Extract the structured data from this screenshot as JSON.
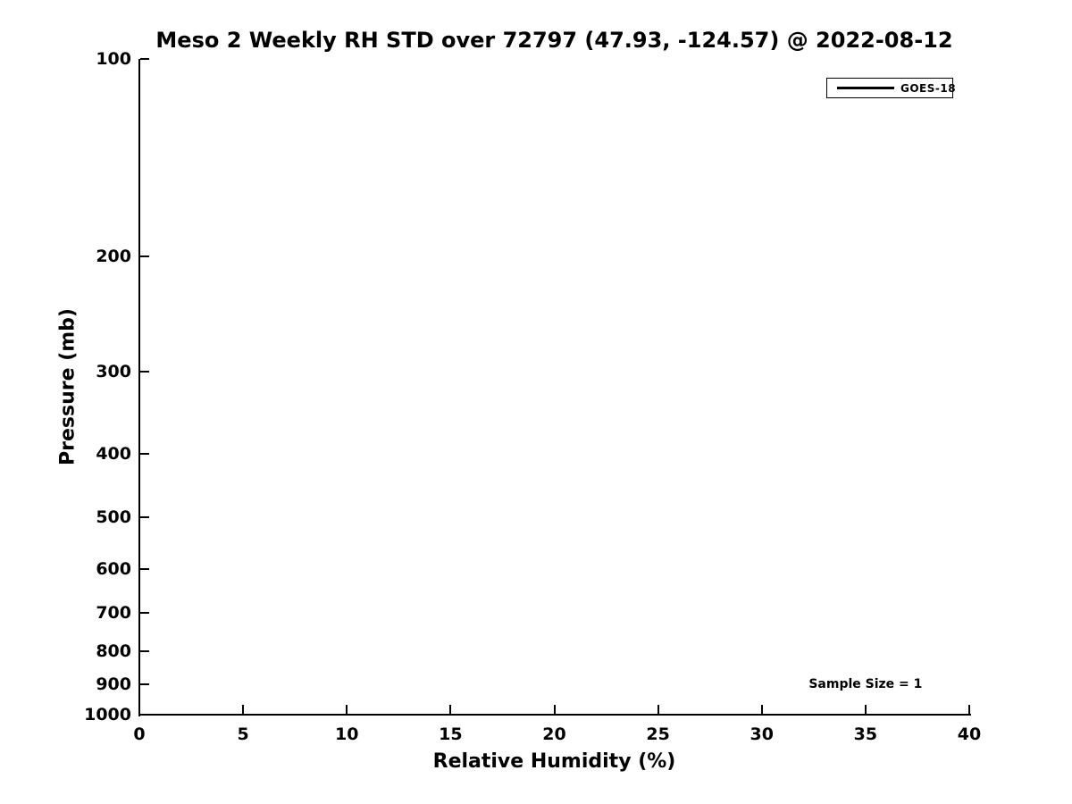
{
  "colors": {
    "foreground": "#000000",
    "background": "#ffffff",
    "series_goes18": "#000000"
  },
  "chart_data": {
    "type": "line",
    "title": "Meso 2 Weekly RH STD over 72797 (47.93, -124.57) @ 2022-08-12",
    "xlabel": "Relative Humidity (%)",
    "ylabel": "Pressure (mb)",
    "xlim": [
      0,
      40
    ],
    "ylim": [
      1000,
      100
    ],
    "yscale": "log",
    "y_axis_inverted": true,
    "grid": false,
    "xticks": [
      0,
      5,
      10,
      15,
      20,
      25,
      30,
      35,
      40
    ],
    "yticks": [
      100,
      200,
      300,
      400,
      500,
      600,
      700,
      800,
      900,
      1000
    ],
    "legend": {
      "position": "upper right",
      "entries": [
        {
          "label": "GOES-18",
          "color": "#000000",
          "style": "solid"
        }
      ]
    },
    "series": [
      {
        "name": "GOES-18",
        "color": "#000000",
        "x": [],
        "y": []
      }
    ],
    "annotations": [
      {
        "text": "Sample Size = 1",
        "x": 35,
        "y": 900
      }
    ]
  }
}
